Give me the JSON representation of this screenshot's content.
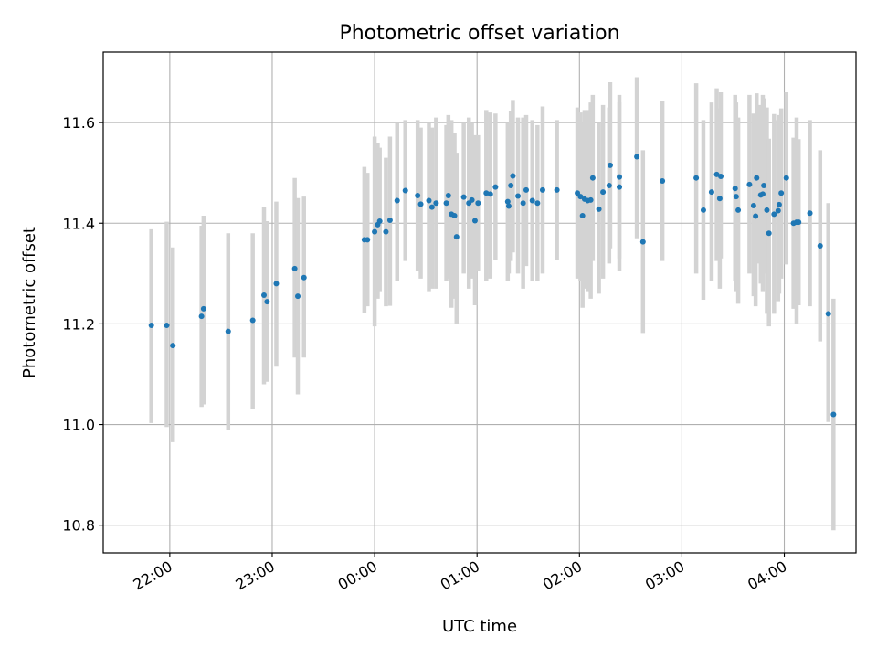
{
  "chart_data": {
    "type": "scatter",
    "title": "Photometric offset variation",
    "xlabel": "UTC time",
    "ylabel": "Photometric offset",
    "xlim_hours": [
      21.35,
      28.7
    ],
    "ylim": [
      10.745,
      11.74
    ],
    "grid": true,
    "colors": {
      "points": "#1f77b4",
      "errorbars": "#d3d3d3",
      "grid": "#b0b0b0"
    },
    "xticks": [
      {
        "h": 22,
        "label": "22:00"
      },
      {
        "h": 23,
        "label": "23:00"
      },
      {
        "h": 24,
        "label": "00:00"
      },
      {
        "h": 25,
        "label": "01:00"
      },
      {
        "h": 26,
        "label": "02:00"
      },
      {
        "h": 27,
        "label": "03:00"
      },
      {
        "h": 28,
        "label": "04:00"
      }
    ],
    "yticks": [
      {
        "v": 10.8,
        "label": "10.8"
      },
      {
        "v": 11.0,
        "label": "11.0"
      },
      {
        "v": 11.2,
        "label": "11.2"
      },
      {
        "v": 11.4,
        "label": "11.4"
      },
      {
        "v": 11.6,
        "label": "11.6"
      }
    ],
    "points": [
      [
        21.82,
        11.197,
        11.003,
        11.388
      ],
      [
        21.97,
        11.197,
        10.995,
        11.403
      ],
      [
        22.03,
        11.157,
        10.965,
        11.352
      ],
      [
        22.31,
        11.215,
        11.035,
        11.395
      ],
      [
        22.33,
        11.23,
        11.04,
        11.415
      ],
      [
        22.57,
        11.185,
        10.989,
        11.38
      ],
      [
        22.81,
        11.207,
        11.03,
        11.38
      ],
      [
        22.92,
        11.257,
        11.08,
        11.433
      ],
      [
        22.95,
        11.244,
        11.085,
        11.404
      ],
      [
        23.04,
        11.28,
        11.115,
        11.443
      ],
      [
        23.22,
        11.31,
        11.133,
        11.49
      ],
      [
        23.25,
        11.255,
        11.06,
        11.45
      ],
      [
        23.31,
        11.292,
        11.133,
        11.453
      ],
      [
        23.9,
        11.367,
        11.222,
        11.512
      ],
      [
        23.93,
        11.367,
        11.235,
        11.5
      ],
      [
        24.0,
        11.383,
        11.195,
        11.572
      ],
      [
        24.03,
        11.397,
        11.25,
        11.56
      ],
      [
        24.05,
        11.404,
        11.265,
        11.55
      ],
      [
        24.11,
        11.383,
        11.235,
        11.53
      ],
      [
        24.15,
        11.406,
        11.236,
        11.572
      ],
      [
        24.22,
        11.445,
        11.285,
        11.6
      ],
      [
        24.3,
        11.465,
        11.325,
        11.605
      ],
      [
        24.42,
        11.455,
        11.305,
        11.605
      ],
      [
        24.45,
        11.438,
        11.29,
        11.59
      ],
      [
        24.53,
        11.445,
        11.265,
        11.6
      ],
      [
        24.56,
        11.432,
        11.27,
        11.59
      ],
      [
        24.6,
        11.44,
        11.27,
        11.61
      ],
      [
        24.7,
        11.44,
        11.285,
        11.595
      ],
      [
        24.72,
        11.455,
        11.29,
        11.615
      ],
      [
        24.75,
        11.418,
        11.232,
        11.605
      ],
      [
        24.78,
        11.415,
        11.25,
        11.58
      ],
      [
        24.8,
        11.373,
        11.2,
        11.54
      ],
      [
        24.87,
        11.452,
        11.3,
        11.6
      ],
      [
        24.92,
        11.44,
        11.27,
        11.61
      ],
      [
        24.95,
        11.446,
        11.29,
        11.6
      ],
      [
        24.98,
        11.405,
        11.237,
        11.575
      ],
      [
        25.01,
        11.44,
        11.305,
        11.575
      ],
      [
        25.09,
        11.46,
        11.285,
        11.625
      ],
      [
        25.13,
        11.458,
        11.29,
        11.62
      ],
      [
        25.18,
        11.472,
        11.327,
        11.618
      ],
      [
        25.3,
        11.443,
        11.285,
        11.6
      ],
      [
        25.31,
        11.434,
        11.3,
        11.57
      ],
      [
        25.33,
        11.475,
        11.325,
        11.623
      ],
      [
        25.35,
        11.494,
        11.342,
        11.645
      ],
      [
        25.4,
        11.454,
        11.3,
        11.61
      ],
      [
        25.45,
        11.44,
        11.27,
        11.61
      ],
      [
        25.48,
        11.466,
        11.315,
        11.615
      ],
      [
        25.54,
        11.445,
        11.285,
        11.605
      ],
      [
        25.59,
        11.44,
        11.285,
        11.595
      ],
      [
        25.64,
        11.466,
        11.3,
        11.632
      ],
      [
        25.78,
        11.466,
        11.327,
        11.605
      ],
      [
        25.98,
        11.46,
        11.29,
        11.63
      ],
      [
        26.01,
        11.453,
        11.285,
        11.62
      ],
      [
        26.03,
        11.415,
        11.232,
        11.6
      ],
      [
        26.05,
        11.448,
        11.27,
        11.625
      ],
      [
        26.08,
        11.445,
        11.265,
        11.625
      ],
      [
        26.11,
        11.446,
        11.25,
        11.64
      ],
      [
        26.13,
        11.49,
        11.325,
        11.655
      ],
      [
        26.19,
        11.428,
        11.26,
        11.6
      ],
      [
        26.23,
        11.462,
        11.29,
        11.635
      ],
      [
        26.29,
        11.475,
        11.32,
        11.63
      ],
      [
        26.3,
        11.515,
        11.35,
        11.68
      ],
      [
        26.39,
        11.472,
        11.305,
        11.64
      ],
      [
        26.39,
        11.492,
        11.33,
        11.655
      ],
      [
        26.56,
        11.532,
        11.37,
        11.69
      ],
      [
        26.62,
        11.363,
        11.182,
        11.545
      ],
      [
        26.81,
        11.484,
        11.325,
        11.643
      ],
      [
        27.14,
        11.49,
        11.3,
        11.678
      ],
      [
        27.21,
        11.426,
        11.248,
        11.605
      ],
      [
        27.29,
        11.462,
        11.285,
        11.64
      ],
      [
        27.34,
        11.497,
        11.325,
        11.668
      ],
      [
        27.37,
        11.449,
        11.27,
        11.628
      ],
      [
        27.38,
        11.493,
        11.33,
        11.66
      ],
      [
        27.52,
        11.469,
        11.285,
        11.655
      ],
      [
        27.53,
        11.453,
        11.265,
        11.64
      ],
      [
        27.55,
        11.426,
        11.24,
        11.61
      ],
      [
        27.66,
        11.477,
        11.3,
        11.655
      ],
      [
        27.7,
        11.435,
        11.255,
        11.618
      ],
      [
        27.72,
        11.414,
        11.235,
        11.595
      ],
      [
        27.73,
        11.49,
        11.32,
        11.658
      ],
      [
        27.77,
        11.456,
        11.28,
        11.635
      ],
      [
        27.79,
        11.458,
        11.265,
        11.655
      ],
      [
        27.8,
        11.475,
        11.3,
        11.648
      ],
      [
        27.83,
        11.426,
        11.22,
        11.63
      ],
      [
        27.85,
        11.38,
        11.195,
        11.568
      ],
      [
        27.9,
        11.418,
        11.22,
        11.617
      ],
      [
        27.94,
        11.425,
        11.245,
        11.605
      ],
      [
        27.95,
        11.437,
        11.26,
        11.615
      ],
      [
        27.97,
        11.46,
        11.29,
        11.628
      ],
      [
        28.02,
        11.49,
        11.318,
        11.66
      ],
      [
        28.09,
        11.4,
        11.23,
        11.57
      ],
      [
        28.12,
        11.402,
        11.2,
        11.61
      ],
      [
        28.14,
        11.402,
        11.237,
        11.567
      ],
      [
        28.25,
        11.42,
        11.235,
        11.605
      ],
      [
        28.35,
        11.355,
        11.165,
        11.545
      ],
      [
        28.43,
        11.22,
        11.005,
        11.44
      ],
      [
        28.48,
        11.02,
        10.79,
        11.25
      ]
    ]
  }
}
